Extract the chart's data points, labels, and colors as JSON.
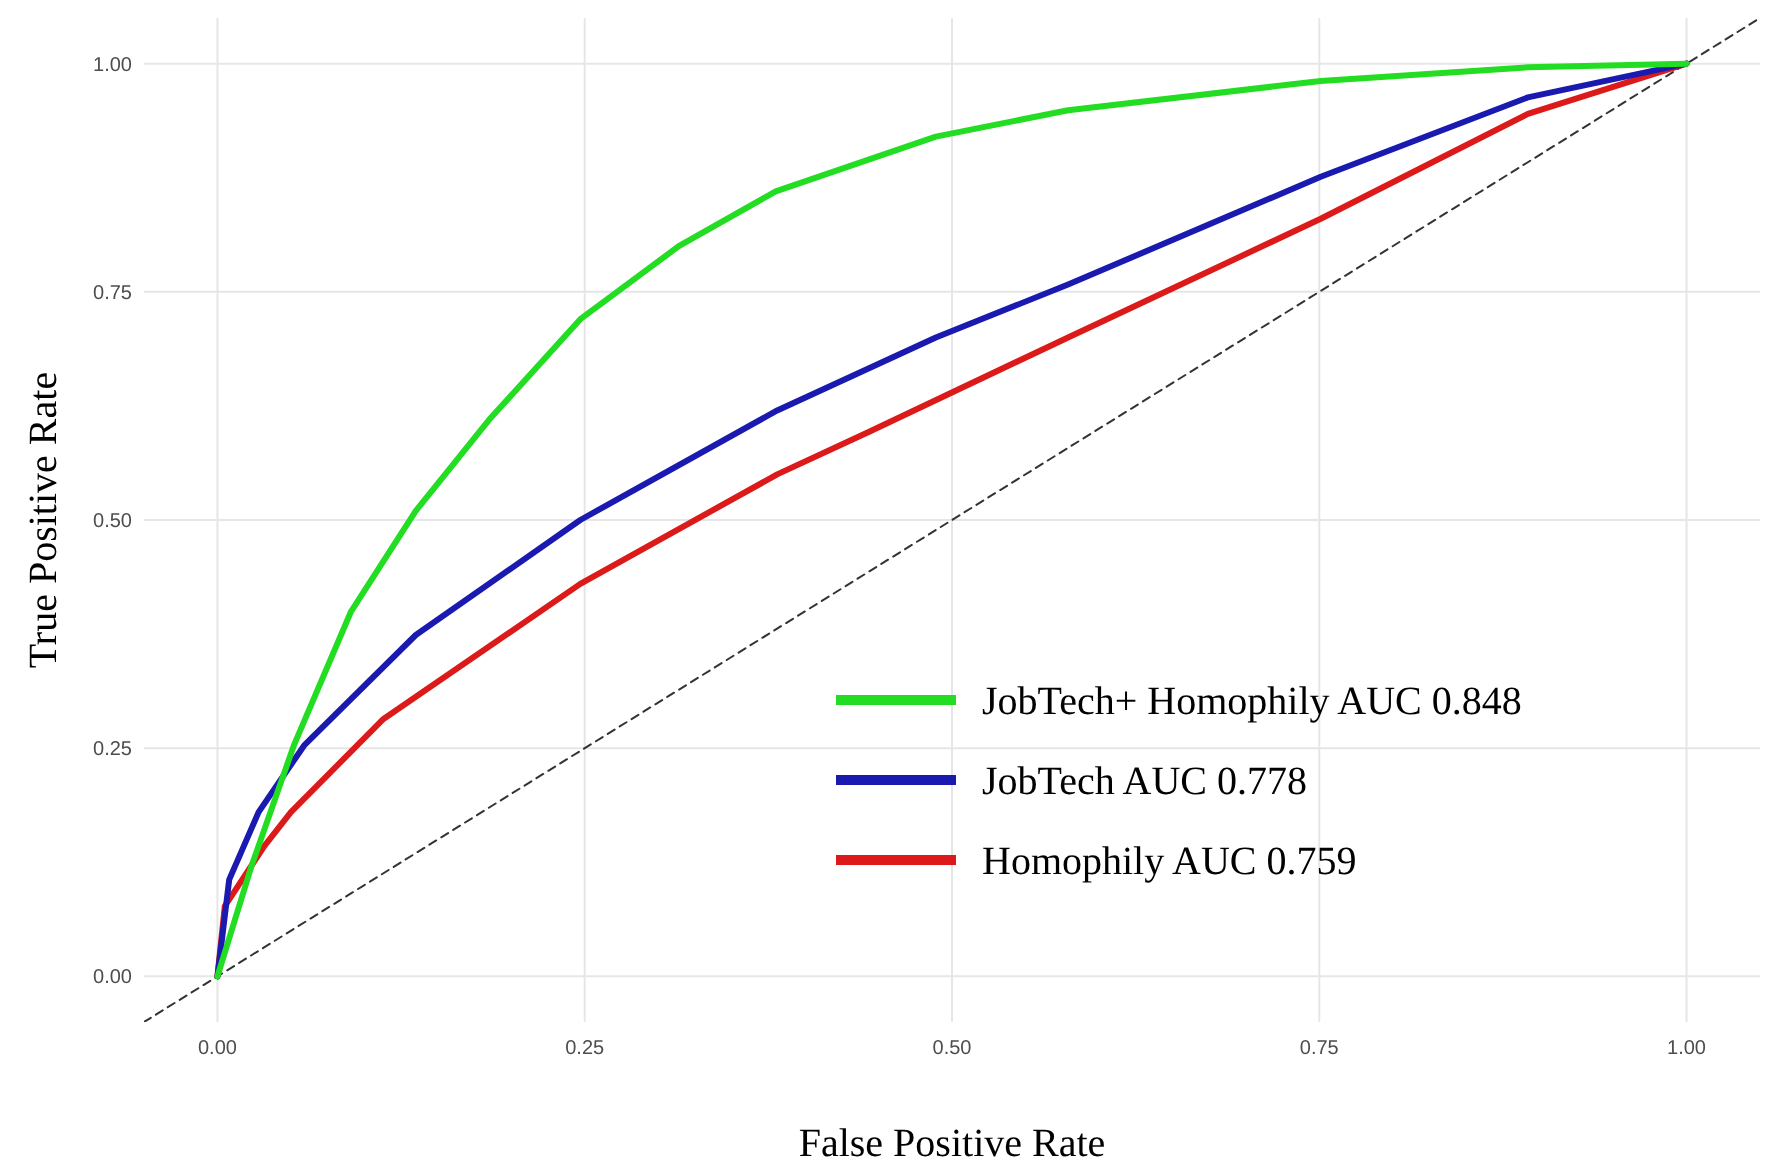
{
  "chart_data": {
    "type": "line",
    "xlabel": "False Positive Rate",
    "ylabel": "True Positive Rate",
    "xlim": [
      -0.05,
      1.05
    ],
    "ylim": [
      -0.05,
      1.05
    ],
    "xticks": [
      {
        "value": 0,
        "label": "0.00"
      },
      {
        "value": 0.25,
        "label": "0.25"
      },
      {
        "value": 0.5,
        "label": "0.50"
      },
      {
        "value": 0.75,
        "label": "0.75"
      },
      {
        "value": 1,
        "label": "1.00"
      }
    ],
    "yticks": [
      {
        "value": 0,
        "label": "0.00"
      },
      {
        "value": 0.25,
        "label": "0.25"
      },
      {
        "value": 0.5,
        "label": "0.50"
      },
      {
        "value": 0.75,
        "label": "0.75"
      },
      {
        "value": 1,
        "label": "1.00"
      }
    ],
    "grid": true,
    "legend": "bottom right",
    "series": [
      {
        "name": "JobTech+ Homophily AUC 0.848",
        "color": "#22dd22",
        "x": [
          0,
          0.023,
          0.052,
          0.091,
          0.135,
          0.185,
          0.247,
          0.314,
          0.38,
          0.489,
          0.579,
          0.751,
          0.892,
          1
        ],
        "values": [
          0,
          0.12,
          0.253,
          0.4,
          0.51,
          0.61,
          0.72,
          0.8,
          0.86,
          0.92,
          0.949,
          0.981,
          0.996,
          1
        ]
      },
      {
        "name": "JobTech AUC 0.778",
        "color": "#1a1ab0",
        "x": [
          0,
          0.008,
          0.028,
          0.059,
          0.135,
          0.247,
          0.381,
          0.489,
          0.579,
          0.751,
          0.892,
          1
        ],
        "values": [
          0,
          0.106,
          0.18,
          0.253,
          0.374,
          0.5,
          0.62,
          0.7,
          0.758,
          0.876,
          0.963,
          1
        ]
      },
      {
        "name": "Homophily AUC 0.759",
        "color": "#dd1a1a",
        "x": [
          0,
          0.005,
          0.032,
          0.05,
          0.113,
          0.247,
          0.381,
          0.444,
          0.579,
          0.751,
          0.892,
          1
        ],
        "values": [
          0,
          0.077,
          0.143,
          0.18,
          0.282,
          0.43,
          0.55,
          0.597,
          0.7,
          0.83,
          0.945,
          1
        ]
      },
      {
        "color": "#333333",
        "line_style": "dashed",
        "x": [
          -0.05,
          1.05
        ],
        "values": [
          -0.05,
          1.05
        ]
      }
    ]
  }
}
